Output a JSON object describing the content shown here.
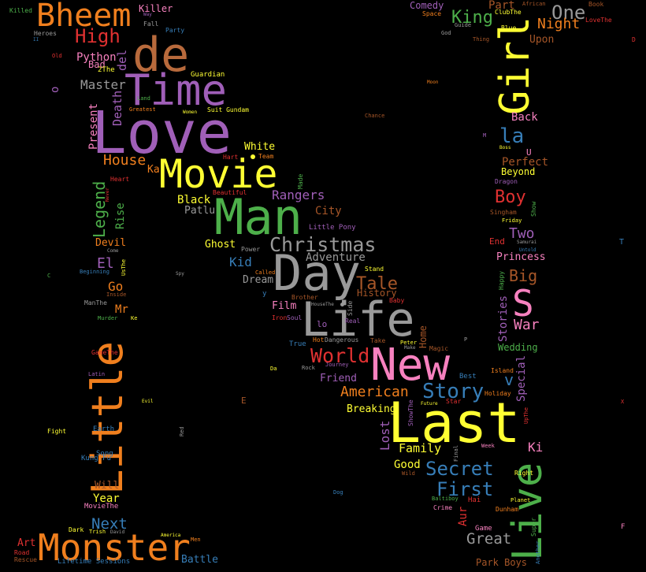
{
  "words": [
    {
      "text": "Love",
      "color": "#a05fb8"
    },
    {
      "text": "Time",
      "color": "#a05fb8"
    },
    {
      "text": "de",
      "color": "#b86a3c"
    },
    {
      "text": "Bheem",
      "color": "#f07f1e"
    },
    {
      "text": "High",
      "color": "#e03131"
    },
    {
      "text": "Movie",
      "color": "#ffff33"
    },
    {
      "text": "Man",
      "color": "#4daf4a"
    },
    {
      "text": "Day",
      "color": "#999999"
    },
    {
      "text": "Life",
      "color": "#999999"
    },
    {
      "text": "New",
      "color": "#f781bf"
    },
    {
      "text": "Last",
      "color": "#ffff33"
    },
    {
      "text": "Little",
      "color": "#f07f1e"
    },
    {
      "text": "Monster",
      "color": "#f07f1e"
    },
    {
      "text": "Girl",
      "color": "#ffff33"
    },
    {
      "text": "Live",
      "color": "#4daf4a"
    },
    {
      "text": "S",
      "color": "#f781bf"
    },
    {
      "text": "Christmas",
      "color": "#999999"
    },
    {
      "text": "Story",
      "color": "#377eb8"
    },
    {
      "text": "Secret",
      "color": "#377eb8"
    },
    {
      "text": "First",
      "color": "#377eb8"
    },
    {
      "text": "World",
      "color": "#e03131"
    },
    {
      "text": "American",
      "color": "#f07f1e"
    },
    {
      "text": "King",
      "color": "#4daf4a"
    },
    {
      "text": "One",
      "color": "#999999"
    },
    {
      "text": "Night",
      "color": "#f07f1e"
    },
    {
      "text": "Part",
      "color": "#a65628"
    },
    {
      "text": "Boy",
      "color": "#e03131"
    },
    {
      "text": "Two",
      "color": "#a05fb8"
    },
    {
      "text": "Big",
      "color": "#a65628"
    },
    {
      "text": "War",
      "color": "#f781bf"
    },
    {
      "text": "la",
      "color": "#377eb8"
    },
    {
      "text": "Tale",
      "color": "#a65628"
    },
    {
      "text": "Great",
      "color": "#999999"
    },
    {
      "text": "Next",
      "color": "#377eb8"
    },
    {
      "text": "Legend",
      "color": "#4daf4a"
    },
    {
      "text": "Rangers",
      "color": "#a05fb8"
    },
    {
      "text": "Master",
      "color": "#999999"
    },
    {
      "text": "House",
      "color": "#f07f1e"
    },
    {
      "text": "Black",
      "color": "#ffff33"
    },
    {
      "text": "Patlu",
      "color": "#999999"
    },
    {
      "text": "Kid",
      "color": "#377eb8"
    },
    {
      "text": "Family",
      "color": "#ffff33"
    },
    {
      "text": "Adventure",
      "color": "#999999"
    },
    {
      "text": "Lost",
      "color": "#a05fb8"
    },
    {
      "text": "Present",
      "color": "#f781bf"
    },
    {
      "text": "Death",
      "color": "#a05fb8"
    },
    {
      "text": "del",
      "color": "#a05fb8"
    },
    {
      "text": "City",
      "color": "#a65628"
    },
    {
      "text": "Ghost",
      "color": "#ffff33"
    },
    {
      "text": "Dream",
      "color": "#999999"
    },
    {
      "text": "Film",
      "color": "#f781bf"
    },
    {
      "text": "El",
      "color": "#a05fb8"
    },
    {
      "text": "Go",
      "color": "#f07f1e"
    },
    {
      "text": "Mr",
      "color": "#f07f1e"
    },
    {
      "text": "Devil",
      "color": "#f07f1e"
    },
    {
      "text": "Rise",
      "color": "#4daf4a"
    },
    {
      "text": "Perfect",
      "color": "#a65628"
    },
    {
      "text": "Beyond",
      "color": "#ffff33"
    },
    {
      "text": "Back",
      "color": "#f781bf"
    },
    {
      "text": "Ki",
      "color": "#f781bf"
    },
    {
      "text": "Special",
      "color": "#a05fb8"
    },
    {
      "text": "Stories",
      "color": "#a05fb8"
    },
    {
      "text": "Princess",
      "color": "#f781bf"
    },
    {
      "text": "Friend",
      "color": "#a05fb8"
    },
    {
      "text": "Breaking",
      "color": "#ffff33"
    },
    {
      "text": "Good",
      "color": "#ffff33"
    },
    {
      "text": "Art",
      "color": "#e03131"
    },
    {
      "text": "Year",
      "color": "#ffff33"
    },
    {
      "text": "Will",
      "color": "#a65628"
    },
    {
      "text": "Python",
      "color": "#f781bf"
    },
    {
      "text": "Bad",
      "color": "#f781bf"
    },
    {
      "text": "Killer",
      "color": "#f781bf"
    },
    {
      "text": "Upon",
      "color": "#a65628"
    },
    {
      "text": "Comedy",
      "color": "#a05fb8"
    },
    {
      "text": "White",
      "color": "#ffff33"
    },
    {
      "text": "Battle",
      "color": "#377eb8"
    },
    {
      "text": "Wedding",
      "color": "#4daf4a"
    },
    {
      "text": "Park Boys",
      "color": "#a65628"
    },
    {
      "text": "Aur",
      "color": "#e03131"
    },
    {
      "text": "Ka",
      "color": "#f07f1e"
    },
    {
      "text": "History",
      "color": "#a65628"
    },
    {
      "text": "Home",
      "color": "#a65628"
    },
    {
      "text": "Lifetime Sessions",
      "color": "#377eb8"
    },
    {
      "text": "Little Pony",
      "color": "#a05fb8"
    },
    {
      "text": "Kung Fu",
      "color": "#377eb8"
    },
    {
      "text": "Killed",
      "color": "#4daf4a"
    },
    {
      "text": "Heroes",
      "color": "#999999"
    },
    {
      "text": "Fall",
      "color": "#999999"
    },
    {
      "text": "Party",
      "color": "#377eb8"
    },
    {
      "text": "Old",
      "color": "#e03131"
    },
    {
      "text": "2The",
      "color": "#ffff33"
    },
    {
      "text": "Guardian",
      "color": "#ffff33"
    },
    {
      "text": "Land",
      "color": "#4daf4a"
    },
    {
      "text": "Greatest",
      "color": "#f07f1e"
    },
    {
      "text": "Women",
      "color": "#ffff33"
    },
    {
      "text": "Suit Gundam",
      "color": "#ffff33"
    },
    {
      "text": "Hart",
      "color": "#e03131"
    },
    {
      "text": "Team",
      "color": "#f07f1e"
    },
    {
      "text": "Heart",
      "color": "#e03131"
    },
    {
      "text": "Made",
      "color": "#4daf4a"
    },
    {
      "text": "Beautiful",
      "color": "#e03131"
    },
    {
      "text": "Power",
      "color": "#999999"
    },
    {
      "text": "Stand",
      "color": "#ffff33"
    },
    {
      "text": "Called",
      "color": "#f07f1e"
    },
    {
      "text": "Brother",
      "color": "#a65628"
    },
    {
      "text": "Baby",
      "color": "#e03131"
    },
    {
      "text": "Space",
      "color": "#f07f1e"
    },
    {
      "text": "Guide",
      "color": "#999999"
    },
    {
      "text": "ClubThe",
      "color": "#ffff33"
    },
    {
      "text": "Blue",
      "color": "#ffff33"
    },
    {
      "text": "African",
      "color": "#a65628"
    },
    {
      "text": "Book",
      "color": "#a65628"
    },
    {
      "text": "LoveThe",
      "color": "#e03131"
    },
    {
      "text": "God",
      "color": "#999999"
    },
    {
      "text": "Thing",
      "color": "#a65628"
    },
    {
      "text": "Moon",
      "color": "#f07f1e"
    },
    {
      "text": "Chance",
      "color": "#a65628"
    },
    {
      "text": "Boss",
      "color": "#ffff33"
    },
    {
      "text": "Dragon",
      "color": "#a05fb8"
    },
    {
      "text": "Singham",
      "color": "#a65628"
    },
    {
      "text": "Friday",
      "color": "#ffff33"
    },
    {
      "text": "Show",
      "color": "#4daf4a"
    },
    {
      "text": "End",
      "color": "#e03131"
    },
    {
      "text": "Samurai",
      "color": "#999999"
    },
    {
      "text": "Untold",
      "color": "#377eb8"
    },
    {
      "text": "Happy",
      "color": "#4daf4a"
    },
    {
      "text": "Beginning",
      "color": "#377eb8"
    },
    {
      "text": "Come",
      "color": "#999999"
    },
    {
      "text": "UsThe",
      "color": "#ffff33"
    },
    {
      "text": "Spy",
      "color": "#999999"
    },
    {
      "text": "Inside",
      "color": "#a65628"
    },
    {
      "text": "ManThe",
      "color": "#999999"
    },
    {
      "text": "Murder",
      "color": "#4daf4a"
    },
    {
      "text": "Ke",
      "color": "#ffff33"
    },
    {
      "text": "Iron",
      "color": "#e03131"
    },
    {
      "text": "Soul",
      "color": "#a05fb8"
    },
    {
      "text": "lo",
      "color": "#a05fb8"
    },
    {
      "text": "HouseThe",
      "color": "#999999"
    },
    {
      "text": "Side",
      "color": "#999999"
    },
    {
      "text": "Real",
      "color": "#a05fb8"
    },
    {
      "text": "True",
      "color": "#377eb8"
    },
    {
      "text": "Hot",
      "color": "#f07f1e"
    },
    {
      "text": "Dangerous",
      "color": "#999999"
    },
    {
      "text": "Take",
      "color": "#a65628"
    },
    {
      "text": "Peter",
      "color": "#ffff33"
    },
    {
      "text": "Make",
      "color": "#999999"
    },
    {
      "text": "Magic",
      "color": "#a65628"
    },
    {
      "text": "GameThe",
      "color": "#e03131"
    },
    {
      "text": "Latin",
      "color": "#a05fb8"
    },
    {
      "text": "Da",
      "color": "#ffff33"
    },
    {
      "text": "Rock",
      "color": "#999999"
    },
    {
      "text": "Journey",
      "color": "#a05fb8"
    },
    {
      "text": "Island",
      "color": "#f07f1e"
    },
    {
      "text": "Best",
      "color": "#377eb8"
    },
    {
      "text": "Holiday",
      "color": "#f07f1e"
    },
    {
      "text": "ShowThe",
      "color": "#a05fb8"
    },
    {
      "text": "Future",
      "color": "#ffff33"
    },
    {
      "text": "Star",
      "color": "#e03131"
    },
    {
      "text": "UpThe",
      "color": "#e03131"
    },
    {
      "text": "Evil",
      "color": "#ffff33"
    },
    {
      "text": "Fight",
      "color": "#ffff33"
    },
    {
      "text": "Earth",
      "color": "#377eb8"
    },
    {
      "text": "Song",
      "color": "#377eb8"
    },
    {
      "text": "Red",
      "color": "#999999"
    },
    {
      "text": "Final",
      "color": "#999999"
    },
    {
      "text": "Week",
      "color": "#f781bf"
    },
    {
      "text": "Wild",
      "color": "#a65628"
    },
    {
      "text": "Right",
      "color": "#ffff33"
    },
    {
      "text": "Dog",
      "color": "#377eb8"
    },
    {
      "text": "Baltiboy",
      "color": "#4daf4a"
    },
    {
      "text": "Crime",
      "color": "#f781bf"
    },
    {
      "text": "Hai",
      "color": "#e03131"
    },
    {
      "text": "Planet",
      "color": "#ffff33"
    },
    {
      "text": "Dunham",
      "color": "#f07f1e"
    },
    {
      "text": "Game",
      "color": "#f781bf"
    },
    {
      "text": "Super",
      "color": "#4daf4a"
    },
    {
      "text": "Another",
      "color": "#377eb8"
    },
    {
      "text": "MovieThe",
      "color": "#f781bf"
    },
    {
      "text": "Dark",
      "color": "#ffff33"
    },
    {
      "text": "Trish",
      "color": "#ffff33"
    },
    {
      "text": "David",
      "color": "#999999"
    },
    {
      "text": "America",
      "color": "#ffff33"
    },
    {
      "text": "Men",
      "color": "#f07f1e"
    },
    {
      "text": "Road",
      "color": "#e03131"
    },
    {
      "text": "Rescue",
      "color": "#a65628"
    },
    {
      "text": "Way",
      "color": "#a05fb8"
    },
    {
      "text": "II",
      "color": "#377eb8"
    },
    {
      "text": "Never",
      "color": "#e03131"
    },
    {
      "text": "D",
      "color": "#e03131"
    },
    {
      "text": "M",
      "color": "#a05fb8"
    },
    {
      "text": "U",
      "color": "#f781bf"
    },
    {
      "text": "T",
      "color": "#377eb8"
    },
    {
      "text": "C",
      "color": "#4daf4a"
    },
    {
      "text": "P",
      "color": "#999999"
    },
    {
      "text": "E",
      "color": "#a65628"
    },
    {
      "text": "F",
      "color": "#f781bf"
    },
    {
      "text": "X",
      "color": "#e03131"
    },
    {
      "text": "o",
      "color": "#a05fb8"
    },
    {
      "text": "v",
      "color": "#377eb8"
    },
    {
      "text": "y",
      "color": "#377eb8"
    }
  ]
}
